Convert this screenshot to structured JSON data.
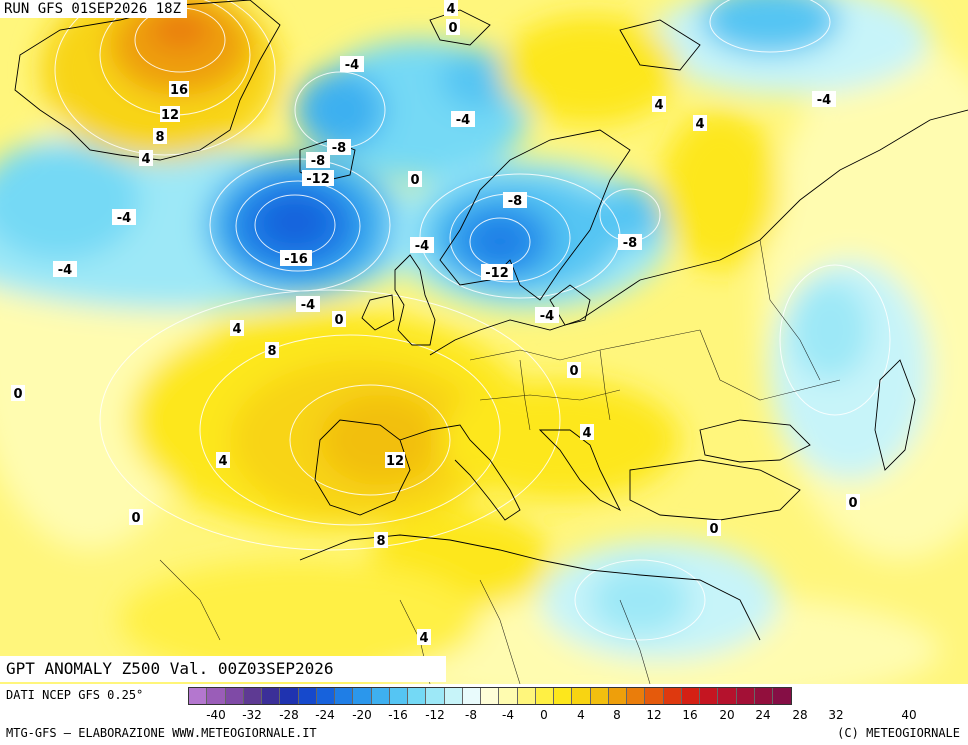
{
  "header": {
    "run": "RUN GFS 01SEP2026 18Z"
  },
  "map": {
    "title": "GPT ANOMALY Z500 Val. 00Z03SEP2026",
    "contour_labels": [
      {
        "text": "4"
      },
      {
        "text": "0"
      },
      {
        "text": "-4"
      },
      {
        "text": "16"
      },
      {
        "text": "12"
      },
      {
        "text": "8"
      },
      {
        "text": "4"
      },
      {
        "text": "-4"
      },
      {
        "text": "4"
      },
      {
        "text": "4"
      },
      {
        "text": "-4"
      },
      {
        "text": "-8"
      },
      {
        "text": "-8"
      },
      {
        "text": "-12"
      },
      {
        "text": "0"
      },
      {
        "text": "-4"
      },
      {
        "text": "-8"
      },
      {
        "text": "-8"
      },
      {
        "text": "-4"
      },
      {
        "text": "-16"
      },
      {
        "text": "-12"
      },
      {
        "text": "-4"
      },
      {
        "text": "-4"
      },
      {
        "text": "0"
      },
      {
        "text": "-4"
      },
      {
        "text": "4"
      },
      {
        "text": "8"
      },
      {
        "text": "0"
      },
      {
        "text": "0"
      },
      {
        "text": "4"
      },
      {
        "text": "12"
      },
      {
        "text": "4"
      },
      {
        "text": "0"
      },
      {
        "text": "8"
      },
      {
        "text": "0"
      },
      {
        "text": "0"
      },
      {
        "text": "4"
      }
    ]
  },
  "legend": {
    "source": "DATI NCEP GFS 0.25°",
    "colors": [
      "#b477cf",
      "#9a5db8",
      "#7f4aa6",
      "#5e3a93",
      "#3b2f98",
      "#1f33b0",
      "#1649cc",
      "#1762dc",
      "#1f7ee6",
      "#2b97ec",
      "#3eb0f0",
      "#55c5f3",
      "#74d9f5",
      "#9de8f7",
      "#c7f4f9",
      "#e9fbfc",
      "#fffed8",
      "#fffcb0",
      "#fff67c",
      "#fff044",
      "#fde71c",
      "#f8d412",
      "#f2bf0f",
      "#ee9f0b",
      "#ea7d0b",
      "#e55a0c",
      "#de390f",
      "#d42014",
      "#c51521",
      "#b5122d",
      "#a31036",
      "#920f3d",
      "#850e45"
    ],
    "ticks": [
      "-40",
      "-32",
      "-28",
      "-24",
      "-20",
      "-16",
      "-12",
      "-8",
      "-4",
      "0",
      "4",
      "8",
      "12",
      "16",
      "20",
      "24",
      "28",
      "32",
      "40"
    ]
  },
  "footer": {
    "credit": "MTG-GFS – ELABORAZIONE WWW.METEOGIORNALE.IT",
    "copyright": "(C) METEOGIORNALE"
  }
}
